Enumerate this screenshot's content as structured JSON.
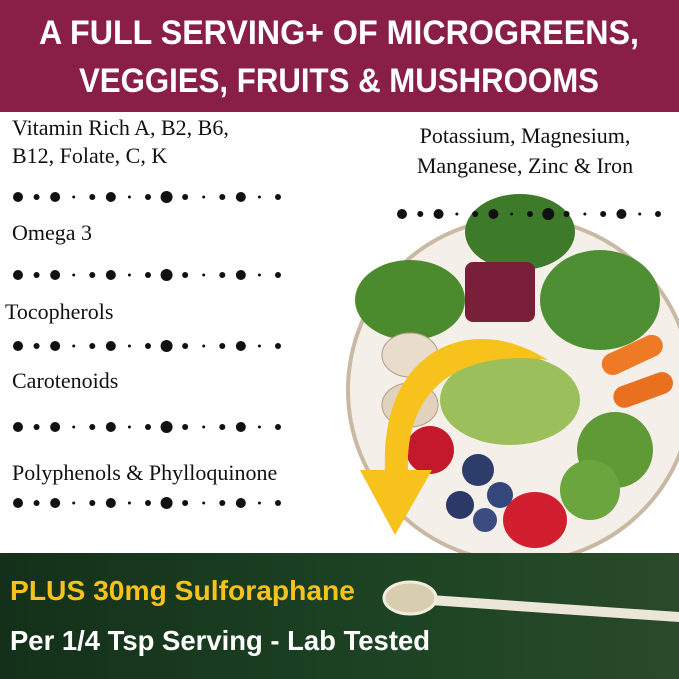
{
  "header": {
    "title_lines": [
      "A FULL SERVING+ OF MICROGREENS,",
      "VEGGIES, FRUITS & MUSHROOMS"
    ]
  },
  "nutrients_left": [
    {
      "lines": [
        "Vitamin Rich A, B2, B6,",
        "B12, Folate, C, K"
      ]
    },
    {
      "lines": [
        "Omega 3"
      ]
    },
    {
      "lines": [
        "Tocopherols"
      ]
    },
    {
      "lines": [
        "Carotenoids"
      ]
    },
    {
      "lines": [
        "Polyphenols & Phylloquinone"
      ]
    }
  ],
  "nutrients_right": {
    "lines": [
      "Potassium, Magnesium,",
      "Manganese, Zinc & Iron"
    ]
  },
  "footer": {
    "headline": "PLUS 30mg Sulforaphane",
    "subline": "Per 1/4 Tsp Serving  - Lab Tested"
  }
}
